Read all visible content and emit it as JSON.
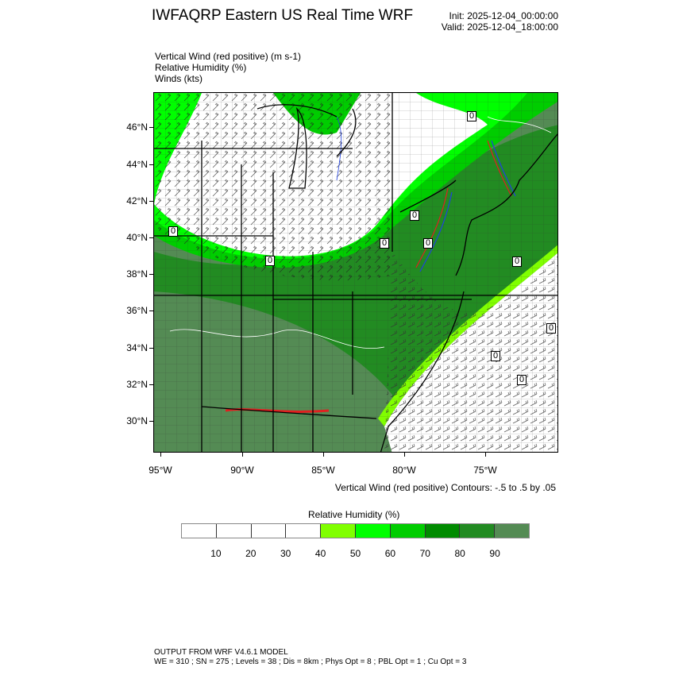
{
  "header": {
    "title": "IWFAQRP Eastern US Real Time WRF",
    "init": "Init: 2025-12-04_00:00:00",
    "valid": "Valid: 2025-12-04_18:00:00"
  },
  "fields": [
    "Vertical Wind (red positive)   (m s-1)",
    "Relative Humidity   (%)",
    "Winds   (kts)"
  ],
  "map": {
    "lat_labels": [
      "46°N",
      "44°N",
      "42°N",
      "40°N",
      "38°N",
      "36°N",
      "34°N",
      "32°N",
      "30°N"
    ],
    "lon_labels": [
      "95°W",
      "90°W",
      "85°W",
      "80°W",
      "75°W"
    ],
    "contour_labels": [
      "0",
      "0",
      "0",
      "0",
      "0",
      "0",
      "0",
      "0",
      "0",
      "0"
    ],
    "colors": {
      "positive": "#e02020",
      "negative": "#2040e0",
      "contour": "#ffffff"
    }
  },
  "contour_info": "Vertical Wind (red positive) Contours: -.5 to .5 by .05",
  "colorbar": {
    "title": "Relative Humidity  (%)",
    "labels": [
      "10",
      "20",
      "30",
      "40",
      "50",
      "60",
      "70",
      "80",
      "90"
    ],
    "colors": [
      "#ffffff",
      "#ffffff",
      "#ffffff",
      "#ffffff",
      "#80ff00",
      "#00ff00",
      "#00cd00",
      "#008b00",
      "#228b22",
      "#548b54"
    ]
  },
  "footer": {
    "line1": "OUTPUT FROM WRF V4.6.1 MODEL",
    "line2": "WE = 310 ; SN = 275 ; Levels = 38 ; Dis = 8km ; Phys Opt = 8 ; PBL Opt = 1 ; Cu Opt = 3"
  }
}
